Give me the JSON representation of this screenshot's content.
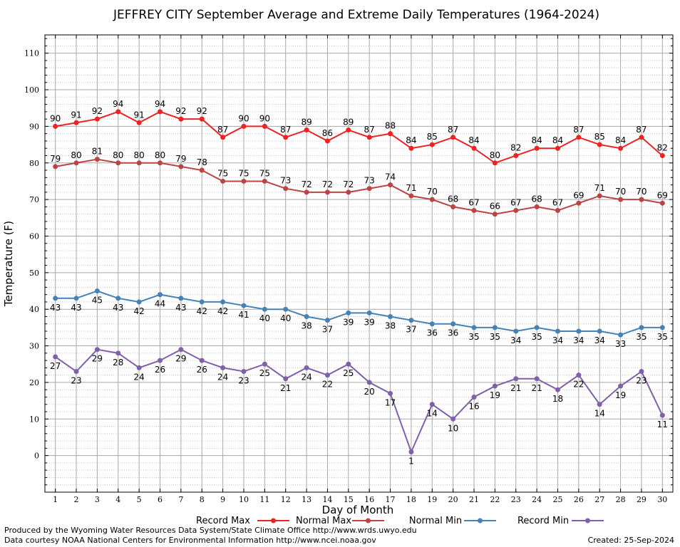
{
  "chart_data": {
    "type": "line",
    "title": "JEFFREY CITY September Average and Extreme Daily Temperatures (1964-2024)",
    "xlabel": "Day of Month",
    "ylabel": "Temperature (F)",
    "x": [
      1,
      2,
      3,
      4,
      5,
      6,
      7,
      8,
      9,
      10,
      11,
      12,
      13,
      14,
      15,
      16,
      17,
      18,
      19,
      20,
      21,
      22,
      23,
      24,
      25,
      26,
      27,
      28,
      29,
      30
    ],
    "xlim": [
      0.5,
      30.5
    ],
    "ylim": [
      -10,
      115
    ],
    "yticks": [
      0,
      10,
      20,
      30,
      40,
      50,
      60,
      70,
      80,
      90,
      100,
      110
    ],
    "grid": true,
    "legend_position": "bottom",
    "series": [
      {
        "name": "Record Max",
        "color": "#ee2222",
        "values": [
          90,
          91,
          92,
          94,
          91,
          94,
          92,
          92,
          87,
          90,
          90,
          87,
          89,
          86,
          89,
          87,
          88,
          84,
          85,
          87,
          84,
          80,
          82,
          84,
          84,
          87,
          85,
          84,
          87,
          82
        ]
      },
      {
        "name": "Normal Max",
        "color": "#bb4444",
        "values": [
          79,
          80,
          81,
          80,
          80,
          80,
          79,
          78,
          75,
          75,
          75,
          73,
          72,
          72,
          72,
          73,
          74,
          71,
          70,
          68,
          67,
          66,
          67,
          68,
          67,
          69,
          71,
          70,
          70,
          69
        ]
      },
      {
        "name": "Normal Min",
        "color": "#4682b4",
        "values": [
          43,
          43,
          45,
          43,
          42,
          44,
          43,
          42,
          42,
          41,
          40,
          40,
          38,
          37,
          39,
          39,
          38,
          37,
          36,
          36,
          35,
          35,
          34,
          35,
          34,
          34,
          34,
          33,
          35,
          35
        ]
      },
      {
        "name": "Record Min",
        "color": "#8060a8",
        "values": [
          27,
          23,
          29,
          28,
          24,
          26,
          29,
          26,
          24,
          23,
          25,
          21,
          24,
          22,
          25,
          20,
          17,
          1,
          14,
          10,
          16,
          19,
          21,
          21,
          18,
          22,
          14,
          19,
          23,
          11
        ]
      }
    ]
  },
  "footer": {
    "left_line1": "Produced by the Wyoming Water Resources Data System/State Climate Office http://www.wrds.uwyo.edu",
    "left_line2": "Data courtesy NOAA National Centers for Environmental Information http://www.ncei.noaa.gov",
    "created": "Created:  25-Sep-2024"
  }
}
